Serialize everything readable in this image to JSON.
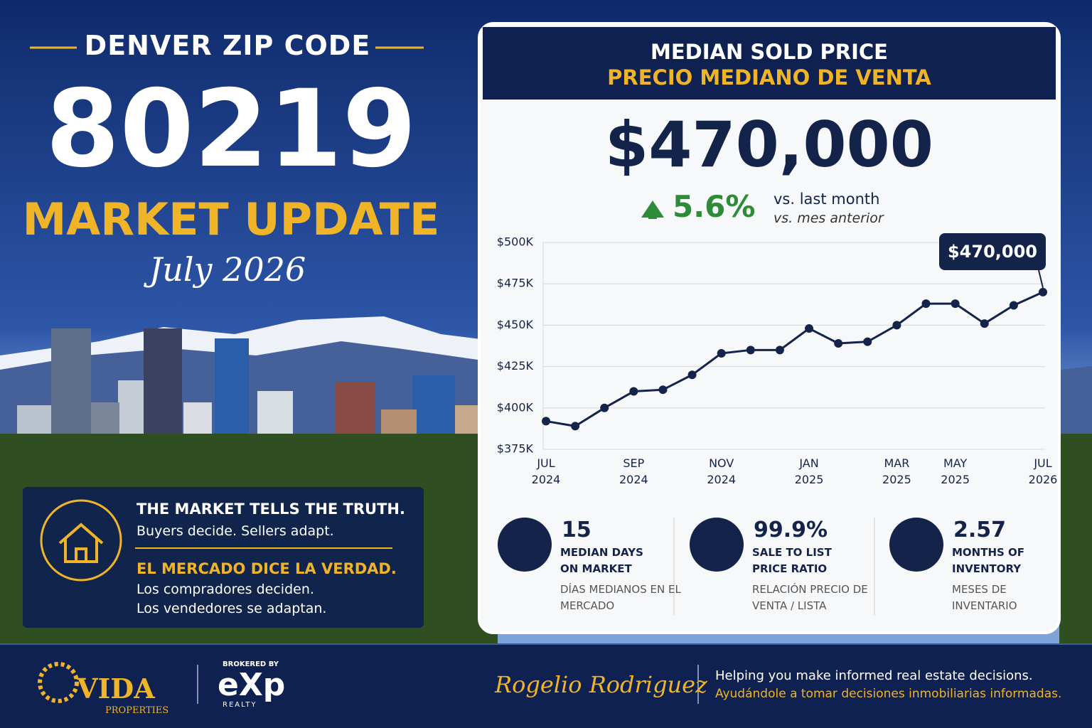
{
  "header": {
    "kicker": "DENVER ZIP CODE",
    "zip": "80219",
    "title": "MARKET UPDATE",
    "date": "July 2026"
  },
  "message": {
    "en_title": "THE MARKET TELLS THE TRUTH.",
    "en_text": "Buyers decide. Sellers adapt.",
    "es_title": "EL MERCADO DICE LA VERDAD.",
    "es_text1": "Los compradores deciden.",
    "es_text2": "Los vendedores se adaptan."
  },
  "card": {
    "title_en": "MEDIAN SOLD PRICE",
    "title_es": "PRECIO MEDIANO DE VENTA",
    "price": "$470,000",
    "change": "5.6%",
    "change_en": "vs. last month",
    "change_es": "vs. mes anterior"
  },
  "chart_data": {
    "type": "line",
    "categories": [
      "JUL 2024",
      null,
      null,
      "SEP 2024",
      null,
      null,
      "NOV 2024",
      null,
      null,
      "JAN 2025",
      null,
      null,
      "MAR 2025",
      null,
      "MAY 2025",
      null,
      null,
      "JUL 2026"
    ],
    "values": [
      392,
      389,
      400,
      410,
      411,
      420,
      433,
      435,
      435,
      448,
      439,
      440,
      450,
      463,
      463,
      451,
      462,
      470
    ],
    "color": "#14234a",
    "ylim": [
      375,
      500
    ],
    "yticks": [
      {
        "value": 375,
        "label": "$375K"
      },
      {
        "value": 400,
        "label": "$400K"
      },
      {
        "value": 425,
        "label": "$425K"
      },
      {
        "value": 450,
        "label": "$450K"
      },
      {
        "value": 475,
        "label": "$475K"
      },
      {
        "value": 500,
        "label": "$500K"
      }
    ],
    "grid": true,
    "annotation": "$470,000"
  },
  "stats": [
    {
      "value": "15",
      "label_en": "MEDIAN DAYS ON MARKET",
      "label_es": "DÍAS MEDIANOS EN EL MERCADO"
    },
    {
      "value": "99.9%",
      "label_en": "SALE TO LIST PRICE RATIO",
      "label_es": "RELACIÓN PRECIO DE VENTA / LISTA"
    },
    {
      "value": "2.57",
      "label_en": "MONTHS OF INVENTORY",
      "label_es": "MESES DE INVENTARIO"
    }
  ],
  "footer": {
    "brand": "VIDA",
    "brand_sub": "PROPERTIES",
    "brokered": "BROKERED BY",
    "exp": "eXp",
    "exp_sub": "REALTY",
    "signature": "Rogelio Rodriguez",
    "tagline_en": "Helping you make informed real estate decisions.",
    "tagline_es": "Ayudándole a tomar decisiones inmobiliarias informadas."
  }
}
